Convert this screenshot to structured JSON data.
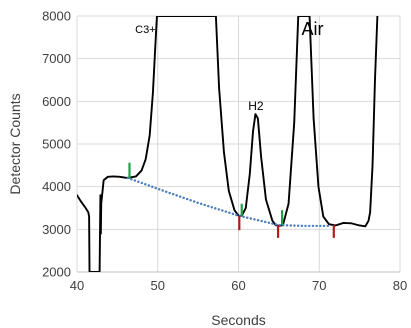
{
  "chart_data": {
    "type": "line",
    "title": "",
    "xlabel": "Seconds",
    "ylabel": "Detector Counts",
    "xlim": [
      40,
      80
    ],
    "ylim": [
      2000,
      8000
    ],
    "x_ticks": [
      "40",
      "50",
      "60",
      "70",
      "80"
    ],
    "y_ticks": [
      "2000",
      "3000",
      "4000",
      "5000",
      "6000",
      "7000",
      "8000"
    ],
    "grid": true,
    "legend": "none",
    "series": [
      {
        "style": "solid",
        "color": "#000000",
        "points": [
          [
            40.0,
            3800
          ],
          [
            40.5,
            3650
          ],
          [
            41.0,
            3520
          ],
          [
            41.4,
            3400
          ],
          [
            41.5,
            3300
          ],
          [
            41.55,
            2000
          ],
          [
            42.8,
            2000
          ],
          [
            42.85,
            2900
          ],
          [
            42.9,
            3800
          ],
          [
            42.95,
            2900
          ],
          [
            43.0,
            3600
          ],
          [
            43.3,
            4150
          ],
          [
            43.8,
            4230
          ],
          [
            44.5,
            4240
          ],
          [
            45.3,
            4230
          ],
          [
            46.0,
            4210
          ],
          [
            46.3,
            4205
          ],
          [
            47.3,
            4240
          ],
          [
            48.0,
            4380
          ],
          [
            48.5,
            4640
          ],
          [
            49.0,
            5200
          ],
          [
            49.4,
            6200
          ],
          [
            49.7,
            7300
          ],
          [
            49.9,
            8000
          ],
          [
            57.2,
            8000
          ],
          [
            57.6,
            6300
          ],
          [
            58.2,
            4800
          ],
          [
            58.8,
            3900
          ],
          [
            59.5,
            3450
          ],
          [
            60.0,
            3320
          ],
          [
            60.4,
            3320
          ],
          [
            60.9,
            3500
          ],
          [
            61.4,
            4300
          ],
          [
            61.8,
            5300
          ],
          [
            62.1,
            5700
          ],
          [
            62.4,
            5600
          ],
          [
            62.8,
            4700
          ],
          [
            63.4,
            3700
          ],
          [
            64.2,
            3200
          ],
          [
            64.6,
            3100
          ],
          [
            65.0,
            3080
          ],
          [
            65.5,
            3100
          ],
          [
            66.2,
            3600
          ],
          [
            66.9,
            5500
          ],
          [
            67.4,
            8000
          ],
          [
            68.8,
            8000
          ],
          [
            69.3,
            5600
          ],
          [
            69.9,
            4000
          ],
          [
            70.5,
            3300
          ],
          [
            71.2,
            3120
          ],
          [
            72.0,
            3090
          ],
          [
            73.0,
            3150
          ],
          [
            74.0,
            3140
          ],
          [
            75.0,
            3090
          ],
          [
            75.7,
            3070
          ],
          [
            76.1,
            3200
          ],
          [
            76.3,
            3400
          ],
          [
            76.6,
            4500
          ],
          [
            76.9,
            6500
          ],
          [
            77.2,
            8000
          ]
        ]
      },
      {
        "style": "dotted",
        "color": "#4a7ec2",
        "points": [
          [
            46.3,
            4205
          ],
          [
            50.0,
            3950
          ],
          [
            55.0,
            3620
          ],
          [
            60.0,
            3320
          ],
          [
            65.0,
            3100
          ],
          [
            68.0,
            3080
          ],
          [
            71.5,
            3080
          ]
        ]
      }
    ],
    "annotations": [
      {
        "text": "C3+",
        "x": 47.2,
        "y": 7600,
        "size": 11
      },
      {
        "text": "H2",
        "x": 61.2,
        "y": 5800,
        "size": 12
      },
      {
        "text": "Air",
        "x": 67.8,
        "y": 7550,
        "size": 18
      }
    ],
    "markers": [
      {
        "color": "#1aa347",
        "x": 46.5,
        "y1": 4200,
        "y2": 4560
      },
      {
        "color": "#1aa347",
        "x": 60.4,
        "y1": 3320,
        "y2": 3600
      },
      {
        "color": "#1aa347",
        "x": 65.4,
        "y1": 3100,
        "y2": 3450
      },
      {
        "color": "#b01c1c",
        "x": 60.1,
        "y1": 2980,
        "y2": 3320
      },
      {
        "color": "#b01c1c",
        "x": 64.9,
        "y1": 2800,
        "y2": 3100
      },
      {
        "color": "#b01c1c",
        "x": 71.8,
        "y1": 2800,
        "y2": 3100
      }
    ]
  }
}
